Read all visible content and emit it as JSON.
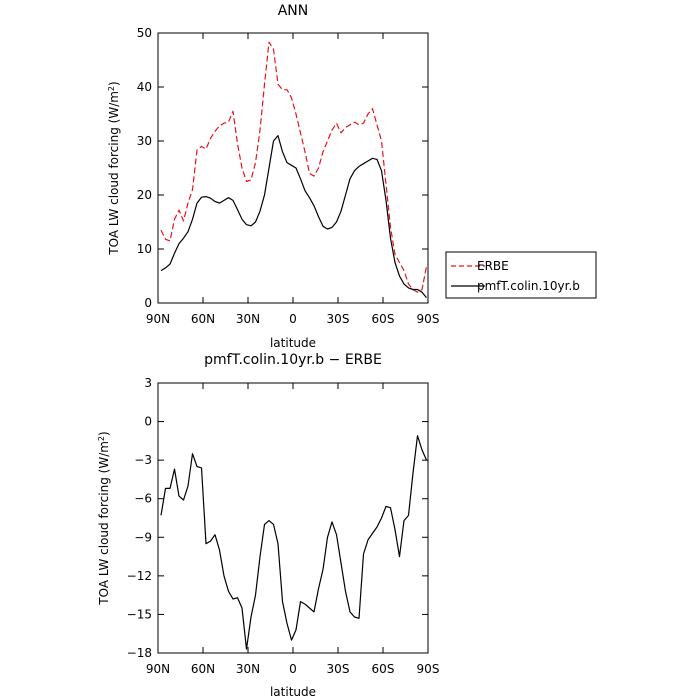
{
  "chart_data": [
    {
      "type": "line",
      "title": "ANN",
      "xlabel": "latitude",
      "ylabel": "TOA LW cloud forcing (W/m",
      "ylabel_sup": "2",
      "ylabel_close": ")",
      "xlim": [
        90,
        -90
      ],
      "ylim": [
        0,
        50
      ],
      "xticks": [
        {
          "v": 90,
          "label": "90N"
        },
        {
          "v": 60,
          "label": "60N"
        },
        {
          "v": 30,
          "label": "30N"
        },
        {
          "v": 0,
          "label": "0"
        },
        {
          "v": -30,
          "label": "30S"
        },
        {
          "v": -60,
          "label": "60S"
        },
        {
          "v": -90,
          "label": "90S"
        }
      ],
      "yticks": [
        {
          "v": 0,
          "label": "0"
        },
        {
          "v": 10,
          "label": "10"
        },
        {
          "v": 20,
          "label": "20"
        },
        {
          "v": 30,
          "label": "30"
        },
        {
          "v": 40,
          "label": "40"
        },
        {
          "v": 50,
          "label": "50"
        }
      ],
      "legend_position": "right",
      "series": [
        {
          "name": "ERBE",
          "color": "#e8141e",
          "dash": true,
          "x": [
            88,
            85,
            82,
            79,
            76,
            73,
            70,
            67,
            64,
            61,
            58,
            55,
            52,
            49,
            46,
            43,
            40,
            37,
            34,
            31,
            28,
            25,
            22,
            19,
            16,
            13,
            10,
            7,
            4,
            1,
            -2,
            -5,
            -8,
            -11,
            -14,
            -17,
            -20,
            -23,
            -26,
            -29,
            -32,
            -35,
            -38,
            -41,
            -44,
            -47,
            -50,
            -53,
            -56,
            -59,
            -62,
            -65,
            -68,
            -71,
            -74,
            -77,
            -80,
            -83,
            -86,
            -89
          ],
          "y": [
            13.5,
            11.8,
            11.5,
            15.5,
            17.2,
            15.2,
            18.5,
            21,
            28.3,
            29,
            28.5,
            30.5,
            31.8,
            32.8,
            33.3,
            33.5,
            35.5,
            29.5,
            25,
            22.5,
            22.8,
            26,
            32,
            40.5,
            48.3,
            47,
            40.5,
            39.5,
            39.5,
            38,
            35,
            31.5,
            28,
            24,
            23.5,
            25,
            28,
            30,
            32,
            33.3,
            31.5,
            32.5,
            33,
            33.5,
            33,
            33.3,
            35,
            36,
            33,
            30,
            22,
            14,
            9,
            7.5,
            6,
            3.5,
            2.5,
            2,
            2.5,
            6.8
          ]
        },
        {
          "name": "pmfT.colin.10yr.b",
          "color": "#000000",
          "dash": false,
          "x": [
            88,
            85,
            82,
            79,
            76,
            73,
            70,
            67,
            64,
            61,
            58,
            55,
            52,
            49,
            46,
            43,
            40,
            37,
            34,
            31,
            28,
            25,
            22,
            19,
            16,
            13,
            10,
            7,
            4,
            1,
            -2,
            -5,
            -8,
            -11,
            -14,
            -17,
            -20,
            -23,
            -26,
            -29,
            -32,
            -35,
            -38,
            -41,
            -44,
            -47,
            -50,
            -53,
            -56,
            -59,
            -62,
            -65,
            -68,
            -71,
            -74,
            -77,
            -80,
            -83,
            -86,
            -89
          ],
          "y": [
            6,
            6.5,
            7.2,
            9.2,
            11,
            12,
            13.2,
            15.5,
            18.5,
            19.6,
            19.7,
            19.4,
            18.8,
            18.5,
            19,
            19.5,
            19,
            17.3,
            15.5,
            14.5,
            14.3,
            15,
            17,
            20,
            25,
            30,
            31,
            28,
            26,
            25.5,
            25,
            23,
            20.8,
            19.5,
            18,
            16,
            14.2,
            13.7,
            14,
            15,
            17,
            20,
            23,
            24.5,
            25.3,
            25.8,
            26.3,
            26.8,
            26.6,
            24.5,
            19,
            12,
            7.5,
            5,
            3.5,
            2.8,
            2.5,
            2.5,
            2,
            1
          ]
        }
      ]
    },
    {
      "type": "line",
      "title": "pmfT.colin.10yr.b − ERBE",
      "xlabel": "latitude",
      "ylabel": "TOA LW cloud forcing (W/m",
      "ylabel_sup": "2",
      "ylabel_close": ")",
      "xlim": [
        90,
        -90
      ],
      "ylim": [
        -18,
        3
      ],
      "xticks": [
        {
          "v": 90,
          "label": "90N"
        },
        {
          "v": 60,
          "label": "60N"
        },
        {
          "v": 30,
          "label": "30N"
        },
        {
          "v": 0,
          "label": "0"
        },
        {
          "v": -30,
          "label": "30S"
        },
        {
          "v": -60,
          "label": "60S"
        },
        {
          "v": -90,
          "label": "90S"
        }
      ],
      "yticks": [
        {
          "v": 3,
          "label": "3"
        },
        {
          "v": 0,
          "label": "0"
        },
        {
          "v": -3,
          "label": "−3"
        },
        {
          "v": -6,
          "label": "−6"
        },
        {
          "v": -9,
          "label": "−9"
        },
        {
          "v": -12,
          "label": "−12"
        },
        {
          "v": -15,
          "label": "−15"
        },
        {
          "v": -18,
          "label": "−18"
        }
      ],
      "series": [
        {
          "color": "#000000",
          "dash": false,
          "x": [
            88,
            85,
            82,
            79,
            76,
            73,
            70,
            67,
            64,
            61,
            58,
            55,
            52,
            49,
            46,
            43,
            40,
            37,
            34,
            31,
            28,
            25,
            22,
            19,
            16,
            13,
            10,
            7,
            4,
            1,
            -2,
            -5,
            -8,
            -11,
            -14,
            -17,
            -20,
            -23,
            -26,
            -29,
            -32,
            -35,
            -38,
            -41,
            -44,
            -47,
            -50,
            -53,
            -56,
            -59,
            -62,
            -65,
            -68,
            -71,
            -74,
            -77,
            -80,
            -83,
            -86,
            -89
          ],
          "y": [
            -7.3,
            -5.2,
            -5.2,
            -3.7,
            -5.8,
            -6.1,
            -5,
            -2.5,
            -3.5,
            -3.6,
            -9.5,
            -9.3,
            -8.8,
            -10,
            -12,
            -13.2,
            -13.8,
            -13.7,
            -14.5,
            -17.7,
            -15.2,
            -13.5,
            -10.5,
            -8,
            -7.7,
            -8,
            -9.5,
            -14,
            -15.7,
            -17,
            -16.2,
            -14,
            -14.2,
            -14.5,
            -14.8,
            -13,
            -11.5,
            -9,
            -7.8,
            -8.8,
            -11,
            -13.2,
            -14.8,
            -15.2,
            -15.3,
            -10.3,
            -9.2,
            -8.7,
            -8.2,
            -7.5,
            -6.6,
            -6.7,
            -8.4,
            -10.5,
            -7.7,
            -7.3,
            -4,
            -1.1,
            -2.2,
            -3
          ]
        }
      ]
    }
  ],
  "legend": {
    "entries": [
      {
        "label": "ERBE",
        "color": "#e8141e",
        "dash": true
      },
      {
        "label": "pmfT.colin.10yr.b",
        "color": "#000000",
        "dash": false
      }
    ]
  }
}
